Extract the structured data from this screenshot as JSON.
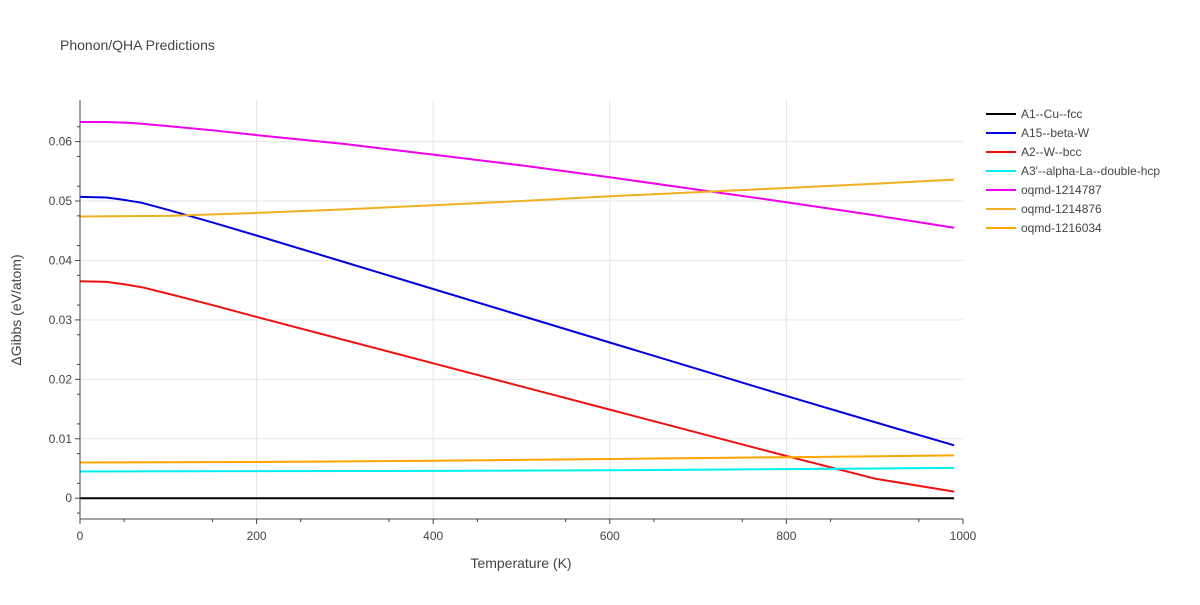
{
  "chart_data": {
    "type": "line",
    "title": "Phonon/QHA Predictions",
    "xlabel": "Temperature (K)",
    "ylabel": "ΔGibbs (eV/atom)",
    "xlim": [
      0,
      1000
    ],
    "ylim": [
      -0.0035,
      0.067
    ],
    "xticks": [
      0,
      200,
      400,
      600,
      800,
      1000
    ],
    "yticks": [
      0,
      0.01,
      0.02,
      0.03,
      0.04,
      0.05,
      0.06
    ],
    "grid": true,
    "legend_position": "right",
    "series": [
      {
        "name": "A1--Cu--fcc",
        "color": "#000000",
        "x": [
          0,
          990
        ],
        "y": [
          0,
          0
        ]
      },
      {
        "name": "A15--beta-W",
        "color": "#0000dd",
        "x": [
          0,
          30,
          50,
          70,
          100,
          150,
          200,
          300,
          400,
          500,
          600,
          700,
          800,
          900,
          990
        ],
        "y": [
          0.0507,
          0.0506,
          0.0502,
          0.0497,
          0.0485,
          0.0464,
          0.0442,
          0.0397,
          0.0352,
          0.0307,
          0.0262,
          0.0217,
          0.0172,
          0.0128,
          0.0089
        ]
      },
      {
        "name": "A2--W--bcc",
        "color": "#ee1111",
        "x": [
          0,
          30,
          50,
          70,
          100,
          150,
          200,
          300,
          400,
          500,
          600,
          700,
          800,
          900,
          990
        ],
        "y": [
          0.0365,
          0.0364,
          0.036,
          0.0355,
          0.0344,
          0.0325,
          0.0305,
          0.0266,
          0.0227,
          0.0188,
          0.0149,
          0.011,
          0.0071,
          0.0033,
          0.0011
        ]
      },
      {
        "name": "A3'--alpha-La--double-hcp",
        "color": "#00eeee",
        "x": [
          0,
          200,
          400,
          600,
          800,
          990
        ],
        "y": [
          0.0045,
          0.00455,
          0.0046,
          0.0047,
          0.0049,
          0.0051
        ]
      },
      {
        "name": "oqmd-1214787",
        "color": "#ee00ee",
        "x": [
          0,
          30,
          50,
          70,
          100,
          150,
          200,
          300,
          400,
          500,
          600,
          700,
          800,
          900,
          990
        ],
        "y": [
          0.0633,
          0.0633,
          0.0632,
          0.063,
          0.0626,
          0.0619,
          0.0611,
          0.0596,
          0.0578,
          0.056,
          0.054,
          0.0519,
          0.0498,
          0.0476,
          0.0455
        ]
      },
      {
        "name": "oqmd-1214876",
        "color": "#eeb022",
        "x": [
          0,
          100,
          200,
          300,
          400,
          500,
          600,
          700,
          800,
          900,
          990
        ],
        "y": [
          0.0474,
          0.0475,
          0.048,
          0.0486,
          0.0493,
          0.05,
          0.0508,
          0.0515,
          0.0522,
          0.0529,
          0.0536
        ]
      },
      {
        "name": "oqmd-1216034",
        "color": "#ffa500",
        "x": [
          0,
          200,
          400,
          600,
          800,
          990
        ],
        "y": [
          0.006,
          0.0061,
          0.0063,
          0.0066,
          0.0069,
          0.0072
        ]
      }
    ]
  }
}
